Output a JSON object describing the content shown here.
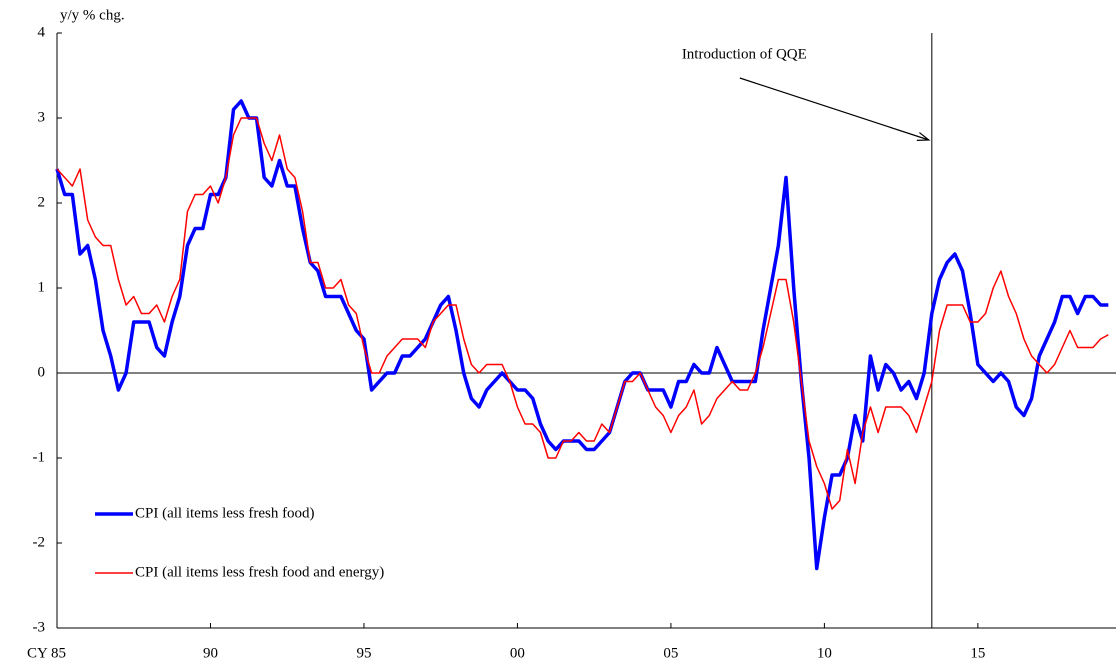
{
  "chart_data": {
    "type": "line",
    "y_label": "y/y % chg.",
    "x": [
      1985,
      1985.25,
      1985.5,
      1985.75,
      1986,
      1986.25,
      1986.5,
      1986.75,
      1987,
      1987.25,
      1987.5,
      1987.75,
      1988,
      1988.25,
      1988.5,
      1988.75,
      1989,
      1989.25,
      1989.5,
      1989.75,
      1990,
      1990.25,
      1990.5,
      1990.75,
      1991,
      1991.25,
      1991.5,
      1991.75,
      1992,
      1992.25,
      1992.5,
      1992.75,
      1993,
      1993.25,
      1993.5,
      1993.75,
      1994,
      1994.25,
      1994.5,
      1994.75,
      1995,
      1995.25,
      1995.5,
      1995.75,
      1996,
      1996.25,
      1996.5,
      1996.75,
      1997,
      1997.25,
      1997.5,
      1997.75,
      1998,
      1998.25,
      1998.5,
      1998.75,
      1999,
      1999.25,
      1999.5,
      1999.75,
      2000,
      2000.25,
      2000.5,
      2000.75,
      2001,
      2001.25,
      2001.5,
      2001.75,
      2002,
      2002.25,
      2002.5,
      2002.75,
      2003,
      2003.25,
      2003.5,
      2003.75,
      2004,
      2004.25,
      2004.5,
      2004.75,
      2005,
      2005.25,
      2005.5,
      2005.75,
      2006,
      2006.25,
      2006.5,
      2006.75,
      2007,
      2007.25,
      2007.5,
      2007.75,
      2008,
      2008.25,
      2008.5,
      2008.75,
      2009,
      2009.25,
      2009.5,
      2009.75,
      2010,
      2010.25,
      2010.5,
      2010.75,
      2011,
      2011.25,
      2011.5,
      2011.75,
      2012,
      2012.25,
      2012.5,
      2012.75,
      2013,
      2013.25,
      2013.5,
      2013.75,
      2014,
      2014.25,
      2014.5,
      2014.75,
      2015,
      2015.25,
      2015.5,
      2015.75,
      2016,
      2016.25,
      2016.5,
      2016.75,
      2017,
      2017.25,
      2017.5,
      2017.75,
      2018,
      2018.25,
      2018.5,
      2018.75,
      2019,
      2019.25
    ],
    "series": [
      {
        "name": "CPI (all items less fresh food)",
        "color": "#0000ff",
        "width": 3.5,
        "values": [
          2.4,
          2.1,
          2.1,
          1.4,
          1.5,
          1.1,
          0.5,
          0.2,
          -0.2,
          0.0,
          0.6,
          0.6,
          0.6,
          0.3,
          0.2,
          0.6,
          0.9,
          1.5,
          1.7,
          1.7,
          2.1,
          2.1,
          2.3,
          3.1,
          3.2,
          3.0,
          3.0,
          2.3,
          2.2,
          2.5,
          2.2,
          2.2,
          1.7,
          1.3,
          1.2,
          0.9,
          0.9,
          0.9,
          0.7,
          0.5,
          0.4,
          -0.2,
          -0.1,
          0.0,
          0.0,
          0.2,
          0.2,
          0.3,
          0.4,
          0.6,
          0.8,
          0.9,
          0.5,
          0.0,
          -0.3,
          -0.4,
          -0.2,
          -0.1,
          0.0,
          -0.1,
          -0.2,
          -0.2,
          -0.3,
          -0.6,
          -0.8,
          -0.9,
          -0.8,
          -0.8,
          -0.8,
          -0.9,
          -0.9,
          -0.8,
          -0.7,
          -0.4,
          -0.1,
          0.0,
          0.0,
          -0.2,
          -0.2,
          -0.2,
          -0.4,
          -0.1,
          -0.1,
          0.1,
          0.0,
          0.0,
          0.3,
          0.1,
          -0.1,
          -0.1,
          -0.1,
          -0.1,
          0.5,
          1.0,
          1.5,
          2.3,
          1.0,
          -0.1,
          -1.0,
          -2.3,
          -1.7,
          -1.2,
          -1.2,
          -1.0,
          -0.5,
          -0.8,
          0.2,
          -0.2,
          0.1,
          0.0,
          -0.2,
          -0.1,
          -0.3,
          0.0,
          0.7,
          1.1,
          1.3,
          1.4,
          1.2,
          0.7,
          0.1,
          0.0,
          -0.1,
          0.0,
          -0.1,
          -0.4,
          -0.5,
          -0.3,
          0.2,
          0.4,
          0.6,
          0.9,
          0.9,
          0.7,
          0.9,
          0.9,
          0.8,
          0.8
        ]
      },
      {
        "name": "CPI (all items less fresh food and energy)",
        "color": "#ff0000",
        "width": 1.5,
        "values": [
          2.4,
          2.3,
          2.2,
          2.4,
          1.8,
          1.6,
          1.5,
          1.5,
          1.1,
          0.8,
          0.9,
          0.7,
          0.7,
          0.8,
          0.6,
          0.9,
          1.1,
          1.9,
          2.1,
          2.1,
          2.2,
          2.0,
          2.3,
          2.8,
          3.0,
          3.0,
          3.0,
          2.7,
          2.5,
          2.8,
          2.4,
          2.3,
          1.9,
          1.3,
          1.3,
          1.0,
          1.0,
          1.1,
          0.8,
          0.7,
          0.3,
          0.0,
          0.0,
          0.2,
          0.3,
          0.4,
          0.4,
          0.4,
          0.3,
          0.6,
          0.7,
          0.8,
          0.8,
          0.4,
          0.1,
          0.0,
          0.1,
          0.1,
          0.1,
          -0.1,
          -0.4,
          -0.6,
          -0.6,
          -0.7,
          -1.0,
          -1.0,
          -0.8,
          -0.8,
          -0.7,
          -0.8,
          -0.8,
          -0.6,
          -0.7,
          -0.4,
          -0.1,
          -0.1,
          0.0,
          -0.2,
          -0.4,
          -0.5,
          -0.7,
          -0.5,
          -0.4,
          -0.2,
          -0.6,
          -0.5,
          -0.3,
          -0.2,
          -0.1,
          -0.2,
          -0.2,
          0.0,
          0.3,
          0.7,
          1.1,
          1.1,
          0.6,
          -0.1,
          -0.8,
          -1.1,
          -1.3,
          -1.6,
          -1.5,
          -0.9,
          -1.3,
          -0.7,
          -0.4,
          -0.7,
          -0.4,
          -0.4,
          -0.4,
          -0.5,
          -0.7,
          -0.4,
          -0.1,
          0.5,
          0.8,
          0.8,
          0.8,
          0.6,
          0.6,
          0.7,
          1.0,
          1.2,
          0.9,
          0.7,
          0.4,
          0.2,
          0.1,
          0.0,
          0.1,
          0.3,
          0.5,
          0.3,
          0.3,
          0.3,
          0.4,
          0.45
        ]
      }
    ],
    "xlim": [
      1985,
      2019.5
    ],
    "xticks": [
      {
        "value": 1985,
        "label": "CY 85"
      },
      {
        "value": 1990,
        "label": "90"
      },
      {
        "value": 1995,
        "label": "95"
      },
      {
        "value": 2000,
        "label": "00"
      },
      {
        "value": 2005,
        "label": "05"
      },
      {
        "value": 2010,
        "label": "10"
      },
      {
        "value": 2015,
        "label": "15"
      }
    ],
    "ylim": [
      -3,
      4
    ],
    "yticks": [
      -3,
      -2,
      -1,
      0,
      1,
      2,
      3,
      4
    ],
    "grid": false,
    "zero_line": true,
    "legend": "lower left",
    "annotations": [
      {
        "text": "Introduction of QQE",
        "x": 2013.5
      }
    ]
  }
}
